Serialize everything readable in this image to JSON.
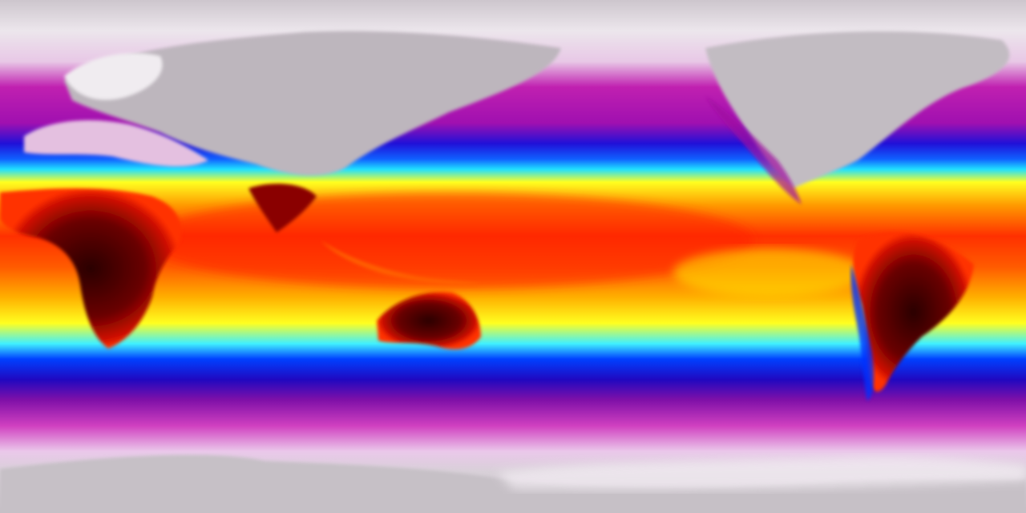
{
  "map": {
    "projection": "equirectangular",
    "colorscale": [
      "#c8c0c8",
      "#f4eef4",
      "#c020b0",
      "#2010d0",
      "#0020ff",
      "#20e0ff",
      "#ffff00",
      "#ff9000",
      "#ff2000",
      "#c00000",
      "#300000"
    ],
    "land_colors": {
      "polar_land": "#bdb6bd",
      "hot_land": "#3a0000",
      "warm_land": "#ff3000"
    }
  }
}
